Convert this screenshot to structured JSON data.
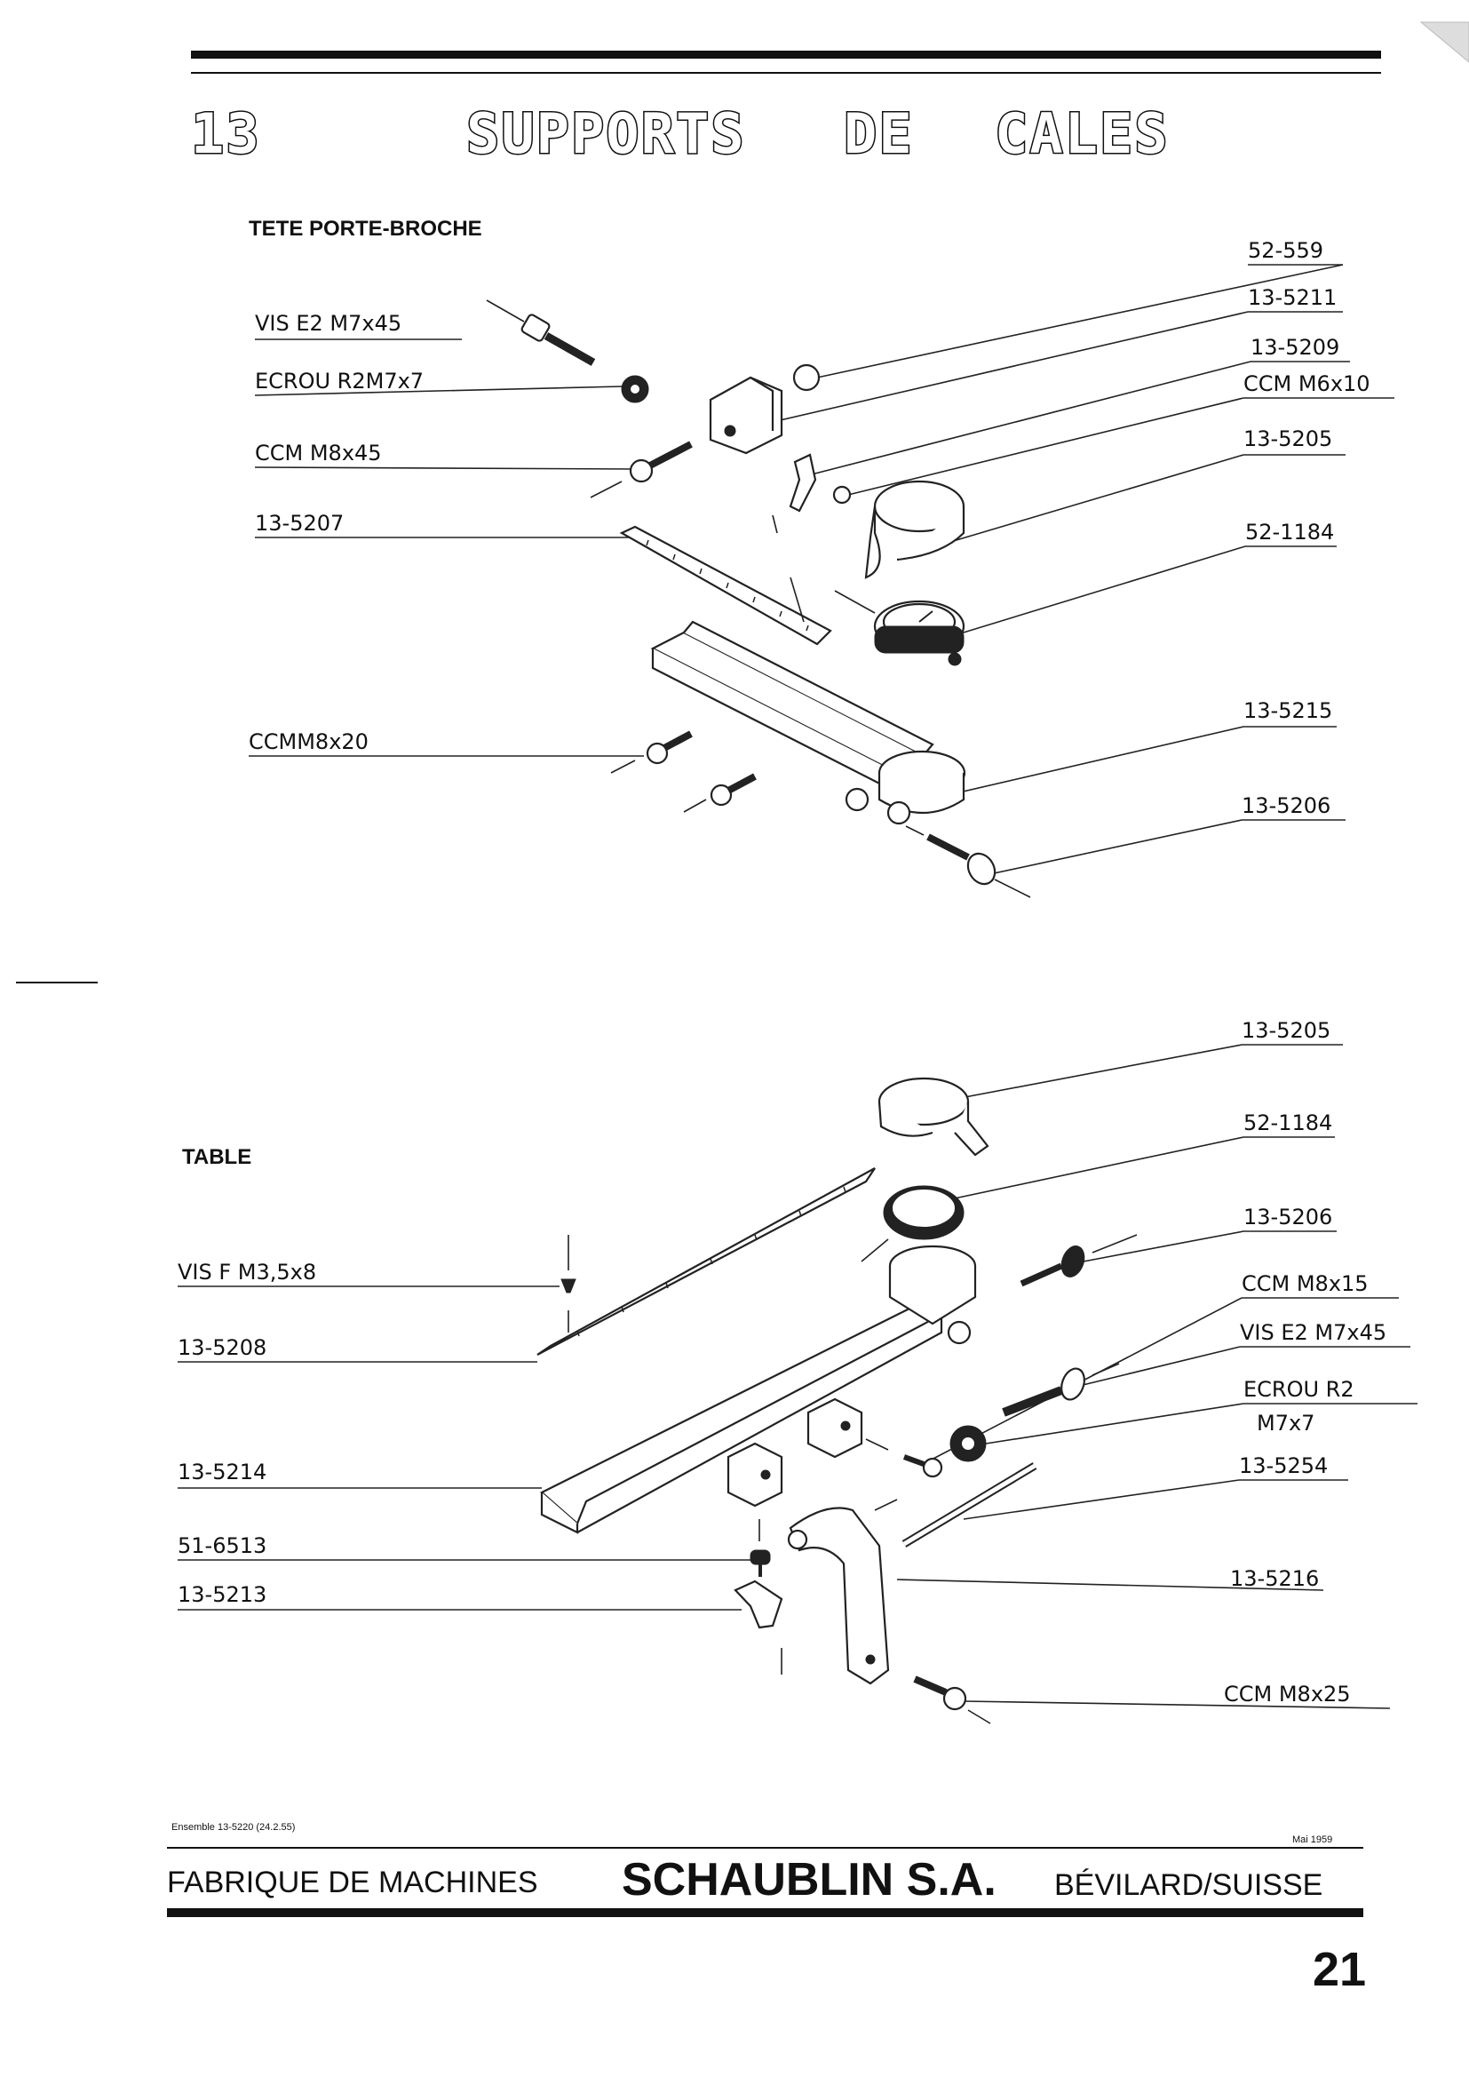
{
  "header": {
    "chapter_number": "13",
    "title_words": [
      "SUPPORTS",
      "DE",
      "CALES"
    ]
  },
  "section_top": {
    "title": "TETE PORTE-BROCHE",
    "labels_left": [
      "VIS E2 M7x45",
      "ECROU R2M7x7",
      "CCM M8x45",
      "13-5207",
      "CCMM8x20"
    ],
    "labels_right": [
      "52-559",
      "13-5211",
      "13-5209",
      "CCM M6x10",
      "13-5205",
      "52-1184",
      "13-5215",
      "13-5206"
    ]
  },
  "section_bottom": {
    "title": "TABLE",
    "labels_left": [
      "VIS F M3,5x8",
      "13-5208",
      "13-5214",
      "51-6513",
      "13-5213"
    ],
    "labels_right": [
      "13-5205",
      "52-1184",
      "13-5206",
      "CCM M8x15",
      "VIS E2 M7x45",
      "ECROU R2",
      "M7x7",
      "13-5254",
      "13-5216",
      "CCM M8x25"
    ]
  },
  "footer": {
    "assembly_ref": "Ensemble 13-5220 (24.2.55)",
    "date": "Mai 1959",
    "company_prefix": "FABRIQUE DE MACHINES",
    "company_name": "SCHAUBLIN S.A.",
    "location": "BÉVILARD/SUISSE",
    "page_number": "21"
  }
}
